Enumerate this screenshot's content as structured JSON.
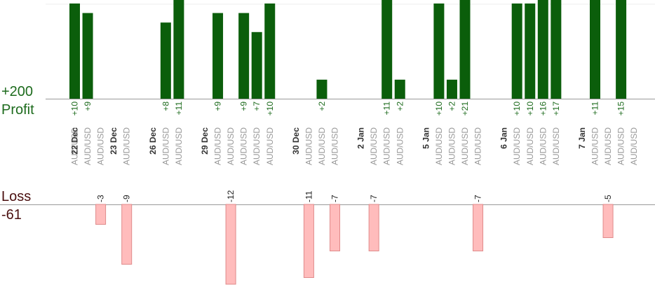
{
  "summary": {
    "profit_label": "Profit",
    "profit_total": "+200",
    "loss_label": "Loss",
    "loss_total": "-61"
  },
  "colors": {
    "profit_bar": "#0b5e0b",
    "profit_text": "#1d6b1d",
    "loss_bar": "#ffbcbc",
    "loss_bar_edge": "#e08a8a",
    "loss_text": "#222222",
    "axis": "#999999",
    "symbol_text": "#999999",
    "date_text": "#333333"
  },
  "chart_data": {
    "type": "bar",
    "slots": [
      {
        "date": "22 Dec",
        "symbol": "AUD/USD",
        "value": 10
      },
      {
        "date": "",
        "symbol": "AUD/USD",
        "value": 9
      },
      {
        "date": "",
        "symbol": "AUD/USD",
        "value": -3
      },
      {
        "date": "23 Dec",
        "symbol": "",
        "value": null
      },
      {
        "date": "",
        "symbol": "AUD/USD",
        "value": -9
      },
      {
        "date": "",
        "symbol": "",
        "value": null
      },
      {
        "date": "26 Dec",
        "symbol": "",
        "value": null
      },
      {
        "date": "",
        "symbol": "AUD/USD",
        "value": 8
      },
      {
        "date": "",
        "symbol": "AUD/USD",
        "value": 11
      },
      {
        "date": "",
        "symbol": "",
        "value": null
      },
      {
        "date": "29 Dec",
        "symbol": "",
        "value": null
      },
      {
        "date": "",
        "symbol": "AUD/USD",
        "value": 9
      },
      {
        "date": "",
        "symbol": "AUD/USD",
        "value": -12
      },
      {
        "date": "",
        "symbol": "AUD/USD",
        "value": 9
      },
      {
        "date": "",
        "symbol": "AUD/USD",
        "value": 7
      },
      {
        "date": "",
        "symbol": "AUD/USD",
        "value": 10
      },
      {
        "date": "",
        "symbol": "",
        "value": null
      },
      {
        "date": "30 Dec",
        "symbol": "",
        "value": null
      },
      {
        "date": "",
        "symbol": "AUD/USD",
        "value": -11
      },
      {
        "date": "",
        "symbol": "AUD/USD",
        "value": 2
      },
      {
        "date": "",
        "symbol": "AUD/USD",
        "value": -7
      },
      {
        "date": "",
        "symbol": "",
        "value": null
      },
      {
        "date": "2 Jan",
        "symbol": "",
        "value": null
      },
      {
        "date": "",
        "symbol": "AUD/USD",
        "value": -7
      },
      {
        "date": "",
        "symbol": "AUD/USD",
        "value": 11
      },
      {
        "date": "",
        "symbol": "AUD/USD",
        "value": 2
      },
      {
        "date": "",
        "symbol": "",
        "value": null
      },
      {
        "date": "5 Jan",
        "symbol": "",
        "value": null
      },
      {
        "date": "",
        "symbol": "AUD/USD",
        "value": 10
      },
      {
        "date": "",
        "symbol": "AUD/USD",
        "value": 2
      },
      {
        "date": "",
        "symbol": "AUD/USD",
        "value": 21
      },
      {
        "date": "",
        "symbol": "AUD/USD",
        "value": -7
      },
      {
        "date": "",
        "symbol": "",
        "value": null
      },
      {
        "date": "6 Jan",
        "symbol": "",
        "value": null
      },
      {
        "date": "",
        "symbol": "AUD/USD",
        "value": 10
      },
      {
        "date": "",
        "symbol": "AUD/USD",
        "value": 10
      },
      {
        "date": "",
        "symbol": "AUD/USD",
        "value": 16
      },
      {
        "date": "",
        "symbol": "AUD/USD",
        "value": 17
      },
      {
        "date": "",
        "symbol": "",
        "value": null
      },
      {
        "date": "7 Jan",
        "symbol": "",
        "value": null
      },
      {
        "date": "",
        "symbol": "AUD/USD",
        "value": 11
      },
      {
        "date": "",
        "symbol": "AUD/USD",
        "value": -5
      },
      {
        "date": "",
        "symbol": "AUD/USD",
        "value": 15
      },
      {
        "date": "",
        "symbol": "AUD/USD",
        "value": null
      }
    ]
  }
}
